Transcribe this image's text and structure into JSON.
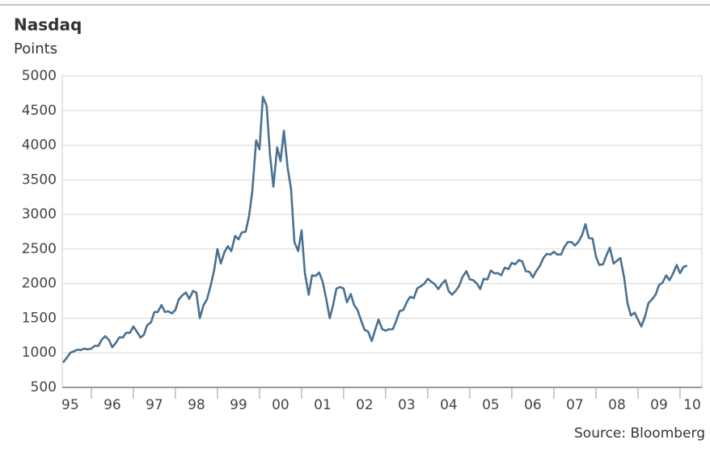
{
  "chart_data": {
    "type": "line",
    "title": "Nasdaq",
    "subtitle": "Points",
    "source": "Source: Bloomberg",
    "color": "#4a7190",
    "grid": true,
    "xlim": [
      1995.31,
      2010.52
    ],
    "ylim": [
      500,
      5000
    ],
    "yticks": [
      500,
      1000,
      1500,
      2000,
      2500,
      3000,
      3500,
      4000,
      4500,
      5000
    ],
    "xticks": [
      {
        "value": 1995.5,
        "label": "95"
      },
      {
        "value": 1996.5,
        "label": "96"
      },
      {
        "value": 1997.5,
        "label": "97"
      },
      {
        "value": 1998.5,
        "label": "98"
      },
      {
        "value": 1999.5,
        "label": "99"
      },
      {
        "value": 2000.5,
        "label": "00"
      },
      {
        "value": 2001.5,
        "label": "01"
      },
      {
        "value": 2002.5,
        "label": "02"
      },
      {
        "value": 2003.5,
        "label": "03"
      },
      {
        "value": 2004.5,
        "label": "04"
      },
      {
        "value": 2005.5,
        "label": "05"
      },
      {
        "value": 2006.5,
        "label": "06"
      },
      {
        "value": 2007.5,
        "label": "07"
      },
      {
        "value": 2008.5,
        "label": "08"
      },
      {
        "value": 2009.5,
        "label": "09"
      },
      {
        "value": 2010.5,
        "label": "10"
      }
    ],
    "x": [
      1995.33,
      1995.42,
      1995.5,
      1995.58,
      1995.67,
      1995.75,
      1995.83,
      1995.92,
      1996,
      1996.08,
      1996.17,
      1996.25,
      1996.33,
      1996.42,
      1996.5,
      1996.58,
      1996.67,
      1996.75,
      1996.83,
      1996.92,
      1997,
      1997.08,
      1997.17,
      1997.25,
      1997.33,
      1997.42,
      1997.5,
      1997.58,
      1997.67,
      1997.75,
      1997.83,
      1997.92,
      1998,
      1998.08,
      1998.17,
      1998.25,
      1998.33,
      1998.42,
      1998.5,
      1998.58,
      1998.67,
      1998.75,
      1998.83,
      1998.92,
      1999,
      1999.08,
      1999.17,
      1999.25,
      1999.33,
      1999.42,
      1999.5,
      1999.58,
      1999.67,
      1999.75,
      1999.83,
      1999.92,
      2000,
      2000.08,
      2000.17,
      2000.25,
      2000.33,
      2000.42,
      2000.5,
      2000.58,
      2000.67,
      2000.75,
      2000.83,
      2000.92,
      2001,
      2001.08,
      2001.17,
      2001.25,
      2001.33,
      2001.42,
      2001.5,
      2001.58,
      2001.67,
      2001.75,
      2001.83,
      2001.92,
      2002,
      2002.08,
      2002.17,
      2002.25,
      2002.33,
      2002.42,
      2002.5,
      2002.58,
      2002.67,
      2002.75,
      2002.83,
      2002.92,
      2003,
      2003.08,
      2003.17,
      2003.25,
      2003.33,
      2003.42,
      2003.5,
      2003.58,
      2003.67,
      2003.75,
      2003.83,
      2003.92,
      2004,
      2004.08,
      2004.17,
      2004.25,
      2004.33,
      2004.42,
      2004.5,
      2004.58,
      2004.67,
      2004.75,
      2004.83,
      2004.92,
      2005,
      2005.08,
      2005.17,
      2005.25,
      2005.33,
      2005.42,
      2005.5,
      2005.58,
      2005.67,
      2005.75,
      2005.83,
      2005.92,
      2006,
      2006.08,
      2006.17,
      2006.25,
      2006.33,
      2006.42,
      2006.5,
      2006.58,
      2006.67,
      2006.75,
      2006.83,
      2006.92,
      2007,
      2007.08,
      2007.17,
      2007.25,
      2007.33,
      2007.42,
      2007.5,
      2007.58,
      2007.67,
      2007.75,
      2007.83,
      2007.92,
      2008,
      2008.08,
      2008.17,
      2008.25,
      2008.33,
      2008.42,
      2008.5,
      2008.58,
      2008.67,
      2008.75,
      2008.83,
      2008.92,
      2009,
      2009.08,
      2009.17,
      2009.25,
      2009.33,
      2009.42,
      2009.5,
      2009.58,
      2009.67,
      2009.75,
      2009.83,
      2009.92,
      2010,
      2010.08,
      2010.17
    ],
    "values": [
      860,
      930,
      1000,
      1020,
      1045,
      1040,
      1060,
      1050,
      1060,
      1100,
      1100,
      1190,
      1240,
      1185,
      1080,
      1140,
      1225,
      1220,
      1290,
      1290,
      1380,
      1310,
      1220,
      1260,
      1400,
      1440,
      1590,
      1590,
      1690,
      1590,
      1600,
      1570,
      1620,
      1770,
      1835,
      1870,
      1780,
      1895,
      1870,
      1500,
      1690,
      1770,
      1950,
      2190,
      2500,
      2290,
      2460,
      2540,
      2470,
      2690,
      2640,
      2740,
      2750,
      2970,
      3340,
      4070,
      3940,
      4700,
      4570,
      3860,
      3400,
      3970,
      3770,
      4210,
      3670,
      3370,
      2600,
      2470,
      2770,
      2150,
      1840,
      2120,
      2110,
      2160,
      2030,
      1800,
      1500,
      1690,
      1930,
      1950,
      1930,
      1730,
      1850,
      1690,
      1620,
      1460,
      1330,
      1310,
      1170,
      1330,
      1480,
      1340,
      1320,
      1340,
      1340,
      1460,
      1600,
      1620,
      1730,
      1810,
      1790,
      1930,
      1960,
      2000,
      2070,
      2030,
      1990,
      1920,
      1990,
      2050,
      1890,
      1840,
      1900,
      1970,
      2100,
      2180,
      2060,
      2050,
      2000,
      1920,
      2070,
      2060,
      2190,
      2150,
      2150,
      2120,
      2230,
      2210,
      2300,
      2280,
      2340,
      2320,
      2180,
      2170,
      2090,
      2180,
      2260,
      2370,
      2430,
      2420,
      2460,
      2420,
      2420,
      2530,
      2600,
      2600,
      2550,
      2600,
      2700,
      2860,
      2660,
      2650,
      2390,
      2270,
      2280,
      2410,
      2520,
      2290,
      2330,
      2370,
      2090,
      1720,
      1540,
      1580,
      1480,
      1380,
      1530,
      1720,
      1770,
      1840,
      1980,
      2010,
      2120,
      2050,
      2140,
      2270,
      2150,
      2240,
      2260
    ]
  }
}
